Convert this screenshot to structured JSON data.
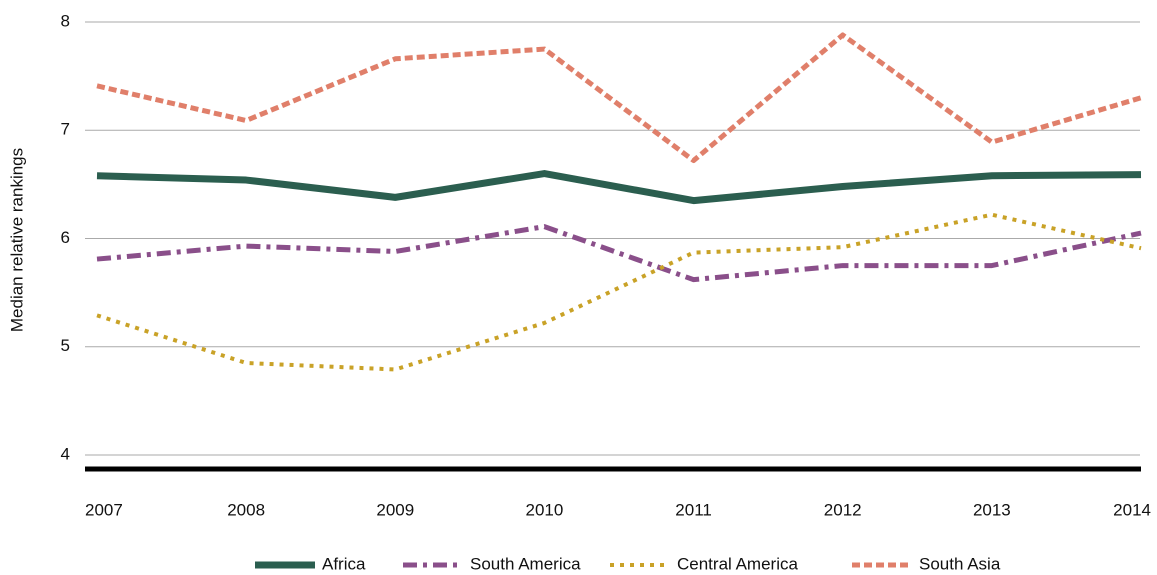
{
  "chart_data": {
    "type": "line",
    "y_label": "Median relative rankings",
    "categories": [
      "2007",
      "2008",
      "2009",
      "2010",
      "2011",
      "2012",
      "2013",
      "2014"
    ],
    "series": [
      {
        "name": "Africa",
        "color": "#2b5e4f",
        "dash": "solid",
        "values": [
          6.58,
          6.54,
          6.38,
          6.6,
          6.35,
          6.48,
          6.58,
          6.59
        ]
      },
      {
        "name": "South America",
        "color": "#8a4f8a",
        "dash": "dashdot",
        "values": [
          5.81,
          5.93,
          5.88,
          6.11,
          5.62,
          5.75,
          5.75,
          6.05
        ]
      },
      {
        "name": "Central America",
        "color": "#c9a227",
        "dash": "dotted",
        "values": [
          5.29,
          4.85,
          4.79,
          5.22,
          5.87,
          5.92,
          6.22,
          5.91
        ]
      },
      {
        "name": "South Asia",
        "color": "#e07f6a",
        "dash": "dashed",
        "values": [
          7.41,
          7.09,
          7.66,
          7.75,
          6.72,
          7.88,
          6.89,
          7.3
        ]
      }
    ],
    "ylim": [
      4,
      8
    ],
    "yticks": [
      4,
      5,
      6,
      7,
      8
    ],
    "grid": true,
    "legend": "bottom"
  }
}
